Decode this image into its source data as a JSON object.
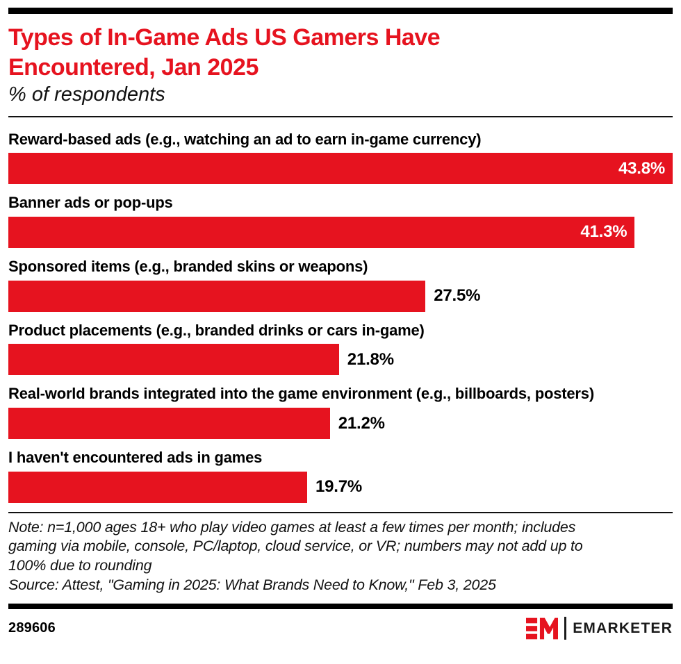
{
  "accent_color": "#e6131f",
  "header": {
    "title": "Types of In-Game Ads US Gamers Have Encountered, Jan 2025",
    "subtitle": "% of respondents"
  },
  "chart_data": {
    "type": "bar",
    "orientation": "horizontal",
    "title": "Types of In-Game Ads US Gamers Have Encountered, Jan 2025",
    "subtitle": "% of respondents",
    "unit": "% of respondents",
    "categories": [
      "Reward-based ads (e.g., watching an ad to earn in-game currency)",
      "Banner ads or pop-ups",
      "Sponsored items (e.g., branded skins or weapons)",
      "Product placements (e.g., branded drinks or cars in-game)",
      "Real-world brands integrated into the game environment (e.g., billboards, posters)",
      "I haven't encountered ads in games"
    ],
    "values": [
      43.8,
      41.3,
      27.5,
      21.8,
      21.2,
      19.7
    ],
    "xlabel": "",
    "ylabel": "",
    "xlim": [
      0,
      43.8
    ],
    "grid": false,
    "legend": "none",
    "bar_color": "#e6131f",
    "value_label_inside": [
      true,
      true,
      false,
      false,
      false,
      false
    ]
  },
  "footnote": {
    "note": "Note: n=1,000 ages 18+ who play video games at least a few times per month; includes\ngaming via mobile, console, PC/laptop, cloud service, or VR; numbers may not add up to\n100% due to rounding",
    "source": "Source: Attest, \"Gaming in 2025: What Brands Need to Know,\" Feb 3, 2025"
  },
  "footer": {
    "chart_id": "289606",
    "brand": "EMARKETER"
  }
}
